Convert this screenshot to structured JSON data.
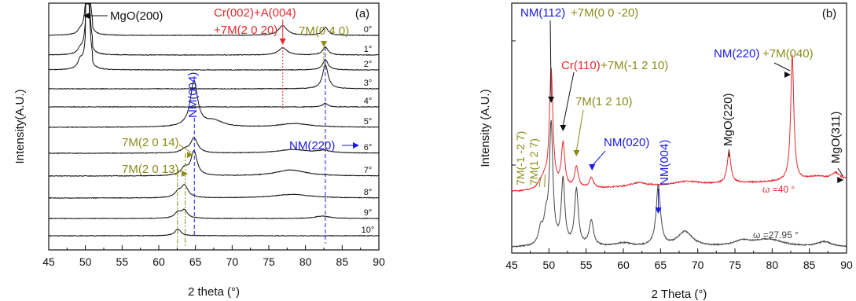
{
  "colors": {
    "black": "#111111",
    "red": "#e8282d",
    "blue": "#1a1ae6",
    "olive": "#8b8b1a",
    "gray": "#444444"
  },
  "chart_data": [
    {
      "type": "line",
      "panel_label": "(a)",
      "xlabel": "2 theta (°)",
      "ylabel": "Intensity(A.U.)",
      "xlim": [
        45,
        90
      ],
      "xticks": [
        "45",
        "50",
        "55",
        "60",
        "65",
        "70",
        "75",
        "80",
        "85",
        "90"
      ],
      "series": [
        {
          "name": "0°",
          "peaks": [
            [
              49.3,
              0.06,
              0.4
            ],
            [
              50.25,
              0.95,
              0.3
            ],
            [
              76.9,
              0.16,
              0.7
            ],
            [
              82.7,
              0.13,
              0.45
            ]
          ]
        },
        {
          "name": "1°",
          "peaks": [
            [
              49.3,
              0.08,
              0.4
            ],
            [
              50.25,
              0.95,
              0.3
            ],
            [
              76.9,
              0.12,
              0.7
            ],
            [
              82.7,
              0.13,
              0.45
            ]
          ]
        },
        {
          "name": "2°",
          "peaks": [
            [
              49.3,
              0.14,
              0.4
            ],
            [
              50.25,
              0.95,
              0.3
            ],
            [
              82.7,
              0.17,
              0.45
            ]
          ]
        },
        {
          "name": "3°",
          "peaks": [
            [
              82.7,
              0.4,
              0.45
            ]
          ]
        },
        {
          "name": "4°",
          "peaks": [
            [
              82.7,
              0.06,
              0.4
            ]
          ]
        },
        {
          "name": "5°",
          "peaks": [
            [
              64.8,
              0.75,
              0.6
            ],
            [
              67.5,
              0.1,
              1.5
            ],
            [
              78.5,
              0.06,
              2.5
            ]
          ]
        },
        {
          "name": "6°",
          "peaks": [
            [
              64.8,
              0.25,
              0.6
            ],
            [
              63.5,
              0.05,
              0.5
            ],
            [
              78.2,
              0.06,
              2.5
            ],
            [
              82.5,
              0.04,
              1
            ]
          ]
        },
        {
          "name": "7°",
          "peaks": [
            [
              64.8,
              0.4,
              0.5
            ],
            [
              63.5,
              0.12,
              0.6
            ],
            [
              78.0,
              0.1,
              2.5
            ]
          ]
        },
        {
          "name": "8°",
          "peaks": [
            [
              63.5,
              0.2,
              0.6
            ],
            [
              62.6,
              0.08,
              0.5
            ],
            [
              78.2,
              0.06,
              3
            ]
          ]
        },
        {
          "name": "9°",
          "peaks": [
            [
              63.5,
              0.13,
              0.5
            ],
            [
              62.6,
              0.1,
              0.5
            ],
            [
              82.3,
              0.04,
              1.2
            ]
          ]
        },
        {
          "name": "10°",
          "peaks": [
            [
              62.6,
              0.11,
              0.5
            ]
          ]
        }
      ],
      "annotations": [
        {
          "text": "MgO(200)",
          "x": 50.3,
          "color": "black"
        },
        {
          "text": "Cr(002)+A(004)",
          "x": 76.9,
          "color": "red"
        },
        {
          "text": "+7M(2 0 20)",
          "x": 76.9,
          "color": "red"
        },
        {
          "text": "7M(0 4 0)",
          "x": 82.7,
          "color": "olive"
        },
        {
          "text": "NM(004)",
          "x": 64.8,
          "color": "blue"
        },
        {
          "text": "7M(2 0 14)",
          "x": 63.6,
          "color": "olive"
        },
        {
          "text": "NM(220)",
          "x": 82.7,
          "color": "blue"
        },
        {
          "text": "7M(2 0 13)",
          "x": 62.6,
          "color": "olive"
        }
      ]
    },
    {
      "type": "line",
      "panel_label": "(b)",
      "xlabel": "2 Theta (°)",
      "ylabel": "Intensity (A.U.)",
      "xlim": [
        45,
        90
      ],
      "xticks": [
        "45",
        "50",
        "55",
        "60",
        "65",
        "70",
        "75",
        "80",
        "85",
        "90"
      ],
      "series": [
        {
          "name": "ω =40 °",
          "color": "red",
          "peaks": [
            [
              48.8,
              0.04,
              0.4
            ],
            [
              49.4,
              0.07,
              0.4
            ],
            [
              50.3,
              0.95,
              0.28
            ],
            [
              51.9,
              0.35,
              0.28
            ],
            [
              53.7,
              0.17,
              0.3
            ],
            [
              55.7,
              0.08,
              0.35
            ],
            [
              62.0,
              0.03,
              1.5
            ],
            [
              68.5,
              0.03,
              2
            ],
            [
              74.2,
              0.25,
              0.3
            ],
            [
              82.7,
              1.0,
              0.25
            ],
            [
              86.0,
              0.03,
              1.5
            ]
          ]
        },
        {
          "name": "ω =27.95 °",
          "color": "gray",
          "peaks": [
            [
              48.9,
              0.12,
              0.35
            ],
            [
              49.6,
              0.18,
              0.35
            ],
            [
              50.3,
              0.95,
              0.28
            ],
            [
              51.9,
              0.52,
              0.28
            ],
            [
              53.7,
              0.45,
              0.3
            ],
            [
              55.7,
              0.2,
              0.35
            ],
            [
              60.0,
              0.03,
              1.5
            ],
            [
              64.7,
              0.48,
              0.35
            ],
            [
              68.3,
              0.12,
              1.2
            ],
            [
              76.0,
              0.04,
              1.5
            ],
            [
              79.5,
              0.06,
              2.5
            ],
            [
              87.0,
              0.04,
              1.2
            ]
          ]
        }
      ],
      "annotations": [
        {
          "text": "NM(112)",
          "x": 50.3,
          "color": "blue"
        },
        {
          "text": "+7M(0 0 -20)",
          "x": 50.3,
          "color": "olive"
        },
        {
          "text": "Cr(110)",
          "x": 51.9,
          "color": "red"
        },
        {
          "text": "+7M(-1 2 10)",
          "x": 51.9,
          "color": "olive"
        },
        {
          "text": "NM(220)",
          "x": 82.7,
          "color": "blue"
        },
        {
          "text": "+7M(040)",
          "x": 82.7,
          "color": "olive"
        },
        {
          "text": "7M(1 2 10)",
          "x": 53.7,
          "color": "olive"
        },
        {
          "text": "NM(020)",
          "x": 55.7,
          "color": "blue"
        },
        {
          "text": "7M(-1 -2 7)",
          "x": 48.8,
          "color": "olive"
        },
        {
          "text": "7M(1 2 7)",
          "x": 49.4,
          "color": "olive"
        },
        {
          "text": "NM(004)",
          "x": 64.7,
          "color": "blue"
        },
        {
          "text": "MgO(220)",
          "x": 74.2,
          "color": "black"
        },
        {
          "text": "MgO(311)",
          "x": 89.5,
          "color": "black"
        }
      ]
    }
  ]
}
